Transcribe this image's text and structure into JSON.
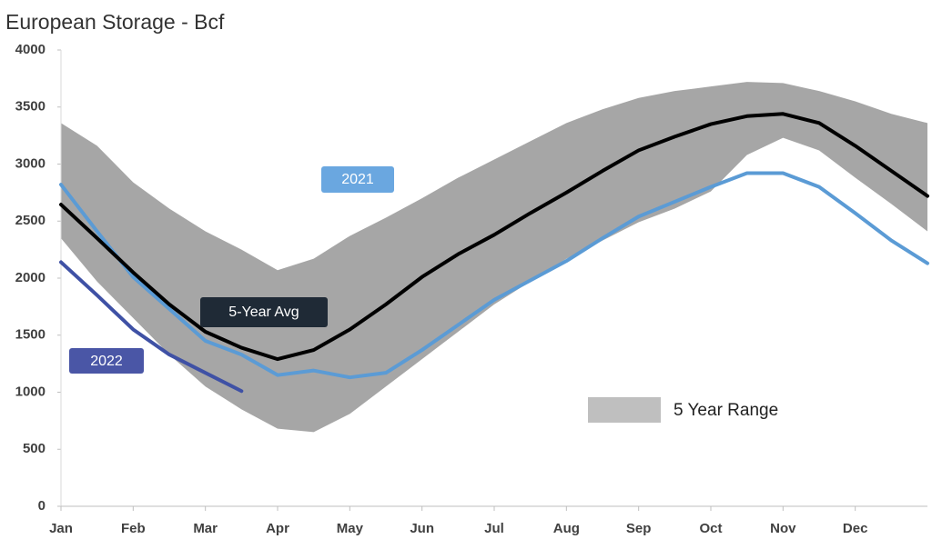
{
  "chart_data": {
    "type": "line",
    "title": "European Storage - Bcf",
    "categories": [
      "Jan",
      null,
      "Feb",
      null,
      "Mar",
      null,
      "Apr",
      null,
      "May",
      null,
      "Jun",
      null,
      "Jul",
      null,
      "Aug",
      null,
      "Sep",
      null,
      "Oct",
      null,
      "Nov",
      null,
      "Dec",
      null,
      null
    ],
    "ylim": [
      0,
      4000
    ],
    "yticks": [
      0,
      500,
      1000,
      1500,
      2000,
      2500,
      3000,
      3500,
      4000
    ],
    "range": {
      "name": "5 Year Range",
      "color": "#a6a6a6",
      "legend_color": "#bfbfbf",
      "upper": [
        3360,
        3160,
        2840,
        2610,
        2410,
        2250,
        2070,
        2170,
        2370,
        2530,
        2700,
        2880,
        3040,
        3200,
        3360,
        3480,
        3580,
        3640,
        3680,
        3720,
        3710,
        3640,
        3550,
        3440,
        3360
      ],
      "lower": [
        2350,
        1970,
        1650,
        1330,
        1050,
        850,
        680,
        650,
        810,
        1050,
        1290,
        1530,
        1770,
        1970,
        2170,
        2330,
        2490,
        2610,
        2760,
        3080,
        3230,
        3120,
        2880,
        2650,
        2410
      ]
    },
    "series": [
      {
        "name": "5-Year Avg",
        "color": "#000000",
        "label_color": "#1f2a36",
        "values": [
          2645,
          2350,
          2050,
          1770,
          1530,
          1390,
          1290,
          1370,
          1550,
          1770,
          2010,
          2210,
          2380,
          2570,
          2750,
          2940,
          3120,
          3240,
          3350,
          3420,
          3440,
          3360,
          3160,
          2940,
          2720
        ]
      },
      {
        "name": "2021",
        "color": "#5b9bd5",
        "label_color": "#6aa7e0",
        "values": [
          2820,
          2410,
          2010,
          1730,
          1450,
          1330,
          1150,
          1190,
          1130,
          1170,
          1370,
          1590,
          1810,
          1980,
          2150,
          2350,
          2540,
          2670,
          2800,
          2920,
          2920,
          2800,
          2570,
          2330,
          2130
        ]
      },
      {
        "name": "2022",
        "color": "#3f51a5",
        "label_color": "#4a56a6",
        "values": [
          2140,
          1850,
          1550,
          1330,
          1170,
          1010,
          null,
          null,
          null,
          null,
          null,
          null,
          null,
          null,
          null,
          null,
          null,
          null,
          null,
          null,
          null,
          null,
          null,
          null,
          null
        ]
      }
    ]
  }
}
